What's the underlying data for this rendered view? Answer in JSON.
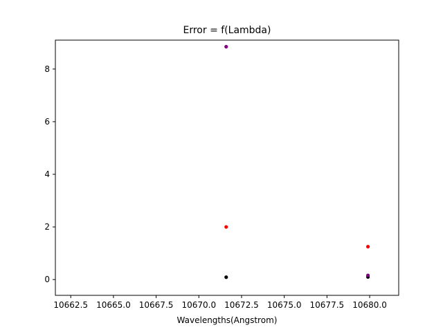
{
  "chart_data": {
    "type": "scatter",
    "title": "Error = f(Lambda)",
    "xlabel": "Wavelengths(Angstrom)",
    "ylabel": "",
    "xlim": [
      10661.6,
      10681.7
    ],
    "ylim": [
      -0.6,
      9.1
    ],
    "xticks": [
      10662.5,
      10665.0,
      10667.5,
      10670.0,
      10672.5,
      10675.0,
      10677.5,
      10680.0
    ],
    "xtick_labels": [
      "10662.5",
      "10665.0",
      "10667.5",
      "10670.0",
      "10672.5",
      "10675.0",
      "10677.5",
      "10680.0"
    ],
    "yticks": [
      0,
      2,
      4,
      6,
      8
    ],
    "ytick_labels": [
      "0",
      "2",
      "4",
      "6",
      "8"
    ],
    "grid": false,
    "series": [
      {
        "color": "#000000",
        "x": [
          10671.6,
          10679.9
        ],
        "y": [
          0.09,
          0.1
        ]
      },
      {
        "color": "#ff0000",
        "x": [
          10671.6,
          10679.9
        ],
        "y": [
          2.0,
          1.25
        ]
      },
      {
        "color": "#800080",
        "x": [
          10671.6,
          10679.9
        ],
        "y": [
          8.85,
          0.16
        ]
      }
    ]
  }
}
